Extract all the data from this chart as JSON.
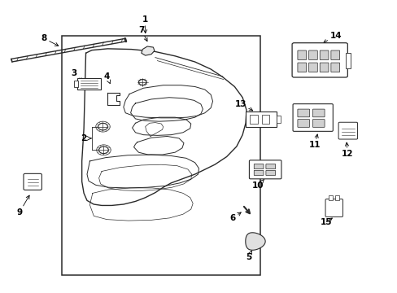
{
  "background_color": "#ffffff",
  "line_color": "#2a2a2a",
  "fig_width": 4.89,
  "fig_height": 3.6,
  "dpi": 100,
  "label_fontsize": 7.5,
  "arrow_lw": 0.6,
  "main_lw": 1.0,
  "thin_lw": 0.7,
  "part_labels": {
    "1": [
      0.365,
      0.935,
      0.365,
      0.915
    ],
    "2": [
      0.185,
      0.395,
      0.185,
      0.395
    ],
    "3": [
      0.185,
      0.73,
      0.21,
      0.71
    ],
    "4": [
      0.27,
      0.73,
      0.28,
      0.705
    ],
    "5": [
      0.625,
      0.115,
      0.63,
      0.14
    ],
    "6": [
      0.59,
      0.24,
      0.615,
      0.27
    ],
    "7": [
      0.355,
      0.9,
      0.37,
      0.87
    ],
    "8": [
      0.11,
      0.87,
      0.148,
      0.83
    ],
    "9": [
      0.045,
      0.27,
      0.062,
      0.3
    ],
    "10": [
      0.65,
      0.36,
      0.66,
      0.385
    ],
    "11": [
      0.79,
      0.5,
      0.798,
      0.53
    ],
    "12": [
      0.875,
      0.47,
      0.872,
      0.5
    ],
    "13": [
      0.605,
      0.62,
      0.628,
      0.595
    ],
    "14": [
      0.845,
      0.87,
      0.845,
      0.84
    ],
    "15": [
      0.82,
      0.24,
      0.825,
      0.265
    ]
  }
}
